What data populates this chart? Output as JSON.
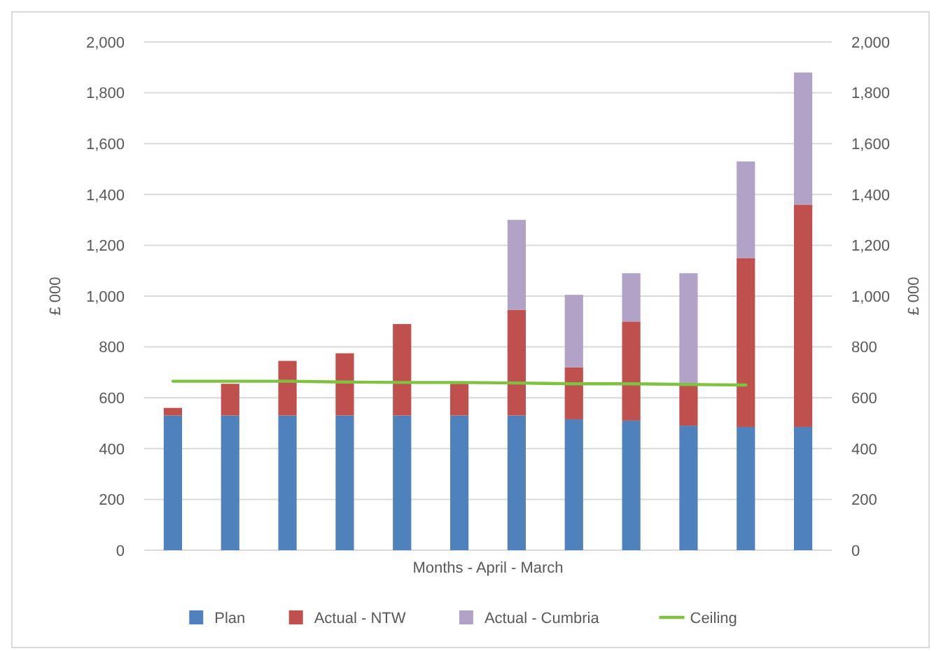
{
  "chart_data": {
    "type": "bar",
    "stacked": true,
    "categories": [
      null,
      null,
      null,
      null,
      null,
      null,
      null,
      null,
      null,
      null,
      null,
      null
    ],
    "xlabel": "Months - April - March",
    "ylabel": "£ 000",
    "y2label": "£ 000",
    "ylim": [
      0,
      2000
    ],
    "yticks": [
      {
        "value": 0,
        "label": "0"
      },
      {
        "value": 200,
        "label": "200"
      },
      {
        "value": 400,
        "label": "400"
      },
      {
        "value": 600,
        "label": "600"
      },
      {
        "value": 800,
        "label": "800"
      },
      {
        "value": 1000,
        "label": "1,000"
      },
      {
        "value": 1200,
        "label": "1,200"
      },
      {
        "value": 1400,
        "label": "1,400"
      },
      {
        "value": 1600,
        "label": "1,600"
      },
      {
        "value": 1800,
        "label": "1,800"
      },
      {
        "value": 2000,
        "label": "2,000"
      }
    ],
    "y2lim": [
      0,
      2000
    ],
    "y2ticks": [
      {
        "value": 0,
        "label": "0"
      },
      {
        "value": 200,
        "label": "200"
      },
      {
        "value": 400,
        "label": "400"
      },
      {
        "value": 600,
        "label": "600"
      },
      {
        "value": 800,
        "label": "800"
      },
      {
        "value": 1000,
        "label": "1,000"
      },
      {
        "value": 1200,
        "label": "1,200"
      },
      {
        "value": 1400,
        "label": "1,400"
      },
      {
        "value": 1600,
        "label": "1,600"
      },
      {
        "value": 1800,
        "label": "1,800"
      },
      {
        "value": 2000,
        "label": "2,000"
      }
    ],
    "grid": "y",
    "legend": "bottom",
    "series": [
      {
        "name": "Plan",
        "color": "#4f81bd",
        "values": [
          530,
          530,
          530,
          530,
          530,
          530,
          530,
          515,
          510,
          490,
          485,
          485
        ]
      },
      {
        "name": "Actual - NTW",
        "color": "#c0504d",
        "values": [
          30,
          125,
          215,
          245,
          360,
          125,
          415,
          205,
          390,
          165,
          665,
          875
        ]
      },
      {
        "name": "Actual - Cumbria",
        "color": "#b3a2c7",
        "values": [
          null,
          null,
          null,
          null,
          null,
          null,
          355,
          285,
          190,
          435,
          380,
          520
        ]
      },
      {
        "name": "Ceiling",
        "type": "line",
        "color": "#7fc241",
        "values": [
          665,
          665,
          665,
          662,
          660,
          660,
          658,
          655,
          655,
          652,
          650,
          null
        ]
      }
    ]
  }
}
